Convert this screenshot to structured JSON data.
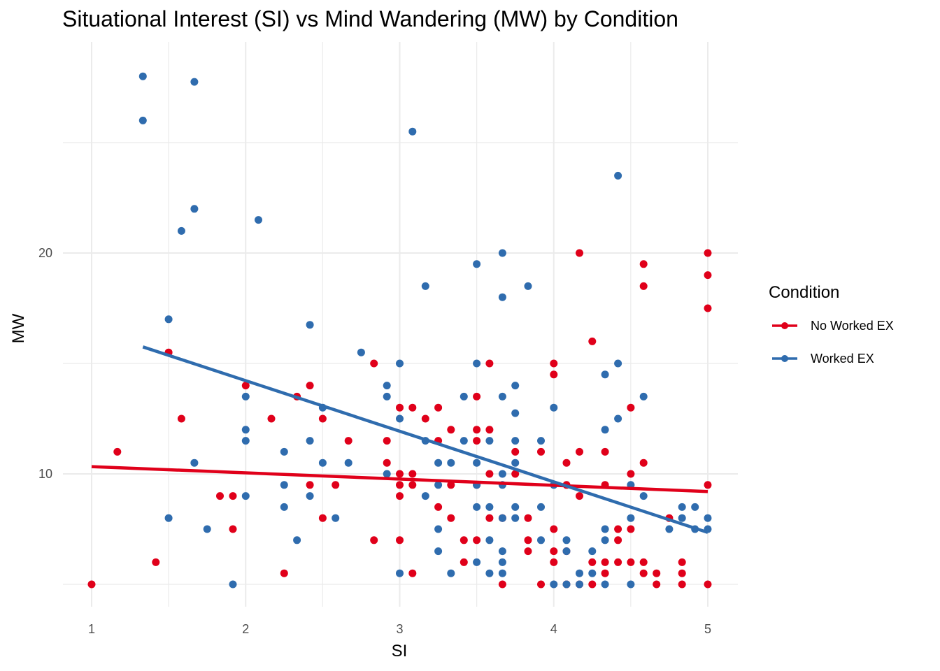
{
  "chart_data": {
    "type": "scatter",
    "title": "Situational Interest (SI) vs Mind Wandering (MW) by Condition",
    "xlabel": "SI",
    "ylabel": "MW",
    "xlim": [
      1,
      5
    ],
    "ylim": [
      5,
      28
    ],
    "x_ticks": [
      "1",
      "2",
      "3",
      "4",
      "5"
    ],
    "y_ticks": [
      "10",
      "20"
    ],
    "grid": true,
    "legend": {
      "title": "Condition",
      "position": "right"
    },
    "series": [
      {
        "name": "No Worked EX",
        "color": "#E0001A",
        "trend": {
          "x": [
            1.0,
            5.0
          ],
          "y": [
            10.33,
            9.2
          ]
        },
        "points": [
          [
            1.0,
            5.0
          ],
          [
            1.167,
            11.0
          ],
          [
            1.417,
            6.0
          ],
          [
            1.5,
            15.5
          ],
          [
            1.583,
            12.5
          ],
          [
            1.833,
            9.0
          ],
          [
            1.917,
            9.0
          ],
          [
            1.917,
            7.5
          ],
          [
            2.0,
            14.0
          ],
          [
            2.167,
            12.5
          ],
          [
            2.25,
            5.5
          ],
          [
            2.333,
            13.5
          ],
          [
            2.417,
            14.0
          ],
          [
            2.417,
            9.5
          ],
          [
            2.5,
            12.5
          ],
          [
            2.5,
            8.0
          ],
          [
            2.583,
            9.5
          ],
          [
            2.667,
            11.5
          ],
          [
            2.833,
            15.0
          ],
          [
            2.833,
            7.0
          ],
          [
            2.917,
            11.5
          ],
          [
            2.917,
            10.5
          ],
          [
            3.0,
            13.0
          ],
          [
            3.0,
            10.0
          ],
          [
            3.0,
            9.5
          ],
          [
            3.0,
            9.0
          ],
          [
            3.0,
            7.0
          ],
          [
            3.083,
            13.0
          ],
          [
            3.083,
            10.0
          ],
          [
            3.083,
            9.5
          ],
          [
            3.083,
            5.5
          ],
          [
            3.167,
            12.5
          ],
          [
            3.25,
            13.0
          ],
          [
            3.25,
            11.5
          ],
          [
            3.25,
            8.5
          ],
          [
            3.333,
            12.0
          ],
          [
            3.333,
            9.5
          ],
          [
            3.333,
            8.0
          ],
          [
            3.417,
            7.0
          ],
          [
            3.417,
            6.0
          ],
          [
            3.5,
            13.5
          ],
          [
            3.5,
            12.0
          ],
          [
            3.5,
            11.5
          ],
          [
            3.5,
            9.5
          ],
          [
            3.5,
            7.0
          ],
          [
            3.583,
            15.0
          ],
          [
            3.583,
            12.0
          ],
          [
            3.583,
            10.0
          ],
          [
            3.583,
            8.0
          ],
          [
            3.667,
            8.0
          ],
          [
            3.667,
            5.0
          ],
          [
            3.75,
            11.0
          ],
          [
            3.75,
            10.0
          ],
          [
            3.833,
            8.0
          ],
          [
            3.833,
            7.0
          ],
          [
            3.833,
            6.5
          ],
          [
            3.917,
            11.0
          ],
          [
            3.917,
            5.0
          ],
          [
            4.0,
            15.0
          ],
          [
            4.0,
            14.5
          ],
          [
            4.0,
            7.5
          ],
          [
            4.0,
            6.5
          ],
          [
            4.0,
            6.0
          ],
          [
            4.083,
            10.5
          ],
          [
            4.083,
            9.5
          ],
          [
            4.083,
            6.5
          ],
          [
            4.083,
            5.0
          ],
          [
            4.167,
            20.0
          ],
          [
            4.167,
            11.0
          ],
          [
            4.167,
            9.0
          ],
          [
            4.167,
            5.0
          ],
          [
            4.25,
            16.0
          ],
          [
            4.25,
            6.0
          ],
          [
            4.25,
            5.0
          ],
          [
            4.333,
            11.0
          ],
          [
            4.333,
            9.5
          ],
          [
            4.333,
            6.0
          ],
          [
            4.333,
            5.5
          ],
          [
            4.417,
            7.5
          ],
          [
            4.417,
            7.0
          ],
          [
            4.417,
            6.0
          ],
          [
            4.5,
            13.0
          ],
          [
            4.5,
            10.0
          ],
          [
            4.5,
            7.5
          ],
          [
            4.5,
            6.0
          ],
          [
            4.583,
            19.5
          ],
          [
            4.583,
            18.5
          ],
          [
            4.583,
            10.5
          ],
          [
            4.583,
            6.0
          ],
          [
            4.583,
            5.5
          ],
          [
            4.667,
            5.5
          ],
          [
            4.667,
            5.0
          ],
          [
            4.75,
            8.0
          ],
          [
            4.833,
            6.0
          ],
          [
            4.833,
            5.5
          ],
          [
            4.833,
            5.0
          ],
          [
            5.0,
            20.0
          ],
          [
            5.0,
            19.0
          ],
          [
            5.0,
            17.5
          ],
          [
            5.0,
            9.5
          ],
          [
            5.0,
            5.0
          ]
        ]
      },
      {
        "name": "Worked EX",
        "color": "#2F6CAE",
        "trend": {
          "x": [
            1.333,
            5.0
          ],
          "y": [
            15.75,
            7.35
          ]
        },
        "points": [
          [
            1.333,
            28.0
          ],
          [
            1.333,
            26.0
          ],
          [
            1.5,
            17.0
          ],
          [
            1.5,
            8.0
          ],
          [
            1.583,
            21.0
          ],
          [
            1.667,
            27.75
          ],
          [
            1.667,
            22.0
          ],
          [
            1.667,
            10.5
          ],
          [
            1.75,
            7.5
          ],
          [
            1.917,
            5.0
          ],
          [
            2.0,
            13.5
          ],
          [
            2.0,
            12.0
          ],
          [
            2.0,
            11.5
          ],
          [
            2.0,
            9.0
          ],
          [
            2.083,
            21.5
          ],
          [
            2.25,
            11.0
          ],
          [
            2.25,
            9.5
          ],
          [
            2.25,
            8.5
          ],
          [
            2.333,
            7.0
          ],
          [
            2.417,
            16.75
          ],
          [
            2.417,
            11.5
          ],
          [
            2.417,
            9.0
          ],
          [
            2.5,
            13.0
          ],
          [
            2.5,
            10.5
          ],
          [
            2.583,
            8.0
          ],
          [
            2.667,
            10.5
          ],
          [
            2.75,
            15.5
          ],
          [
            2.917,
            14.0
          ],
          [
            2.917,
            13.5
          ],
          [
            2.917,
            10.0
          ],
          [
            3.0,
            15.0
          ],
          [
            3.0,
            12.5
          ],
          [
            3.0,
            5.5
          ],
          [
            3.083,
            25.5
          ],
          [
            3.167,
            18.5
          ],
          [
            3.167,
            11.5
          ],
          [
            3.167,
            9.0
          ],
          [
            3.25,
            10.5
          ],
          [
            3.25,
            9.5
          ],
          [
            3.25,
            7.5
          ],
          [
            3.25,
            6.5
          ],
          [
            3.333,
            10.5
          ],
          [
            3.333,
            5.5
          ],
          [
            3.417,
            13.5
          ],
          [
            3.417,
            11.5
          ],
          [
            3.5,
            19.5
          ],
          [
            3.5,
            15.0
          ],
          [
            3.5,
            10.5
          ],
          [
            3.5,
            9.5
          ],
          [
            3.5,
            8.5
          ],
          [
            3.5,
            6.0
          ],
          [
            3.583,
            11.5
          ],
          [
            3.583,
            8.5
          ],
          [
            3.583,
            7.0
          ],
          [
            3.583,
            5.5
          ],
          [
            3.667,
            20.0
          ],
          [
            3.667,
            18.0
          ],
          [
            3.667,
            13.5
          ],
          [
            3.667,
            10.0
          ],
          [
            3.667,
            9.5
          ],
          [
            3.667,
            8.0
          ],
          [
            3.667,
            6.5
          ],
          [
            3.667,
            6.0
          ],
          [
            3.667,
            5.5
          ],
          [
            3.75,
            14.0
          ],
          [
            3.75,
            12.75
          ],
          [
            3.75,
            11.5
          ],
          [
            3.75,
            10.5
          ],
          [
            3.75,
            8.5
          ],
          [
            3.75,
            8.0
          ],
          [
            3.833,
            18.5
          ],
          [
            3.917,
            11.5
          ],
          [
            3.917,
            8.5
          ],
          [
            3.917,
            7.0
          ],
          [
            4.0,
            13.0
          ],
          [
            4.0,
            9.5
          ],
          [
            4.0,
            5.0
          ],
          [
            4.083,
            7.0
          ],
          [
            4.083,
            6.5
          ],
          [
            4.083,
            5.0
          ],
          [
            4.167,
            5.5
          ],
          [
            4.167,
            5.0
          ],
          [
            4.25,
            6.5
          ],
          [
            4.25,
            5.5
          ],
          [
            4.333,
            14.5
          ],
          [
            4.333,
            12.0
          ],
          [
            4.333,
            7.5
          ],
          [
            4.333,
            7.0
          ],
          [
            4.333,
            5.0
          ],
          [
            4.417,
            23.5
          ],
          [
            4.417,
            15.0
          ],
          [
            4.417,
            12.5
          ],
          [
            4.5,
            9.5
          ],
          [
            4.5,
            8.0
          ],
          [
            4.5,
            5.0
          ],
          [
            4.583,
            13.5
          ],
          [
            4.583,
            9.0
          ],
          [
            4.75,
            7.5
          ],
          [
            4.833,
            8.5
          ],
          [
            4.833,
            8.0
          ],
          [
            4.917,
            8.5
          ],
          [
            4.917,
            7.5
          ],
          [
            5.0,
            8.0
          ],
          [
            5.0,
            7.5
          ]
        ]
      }
    ]
  }
}
